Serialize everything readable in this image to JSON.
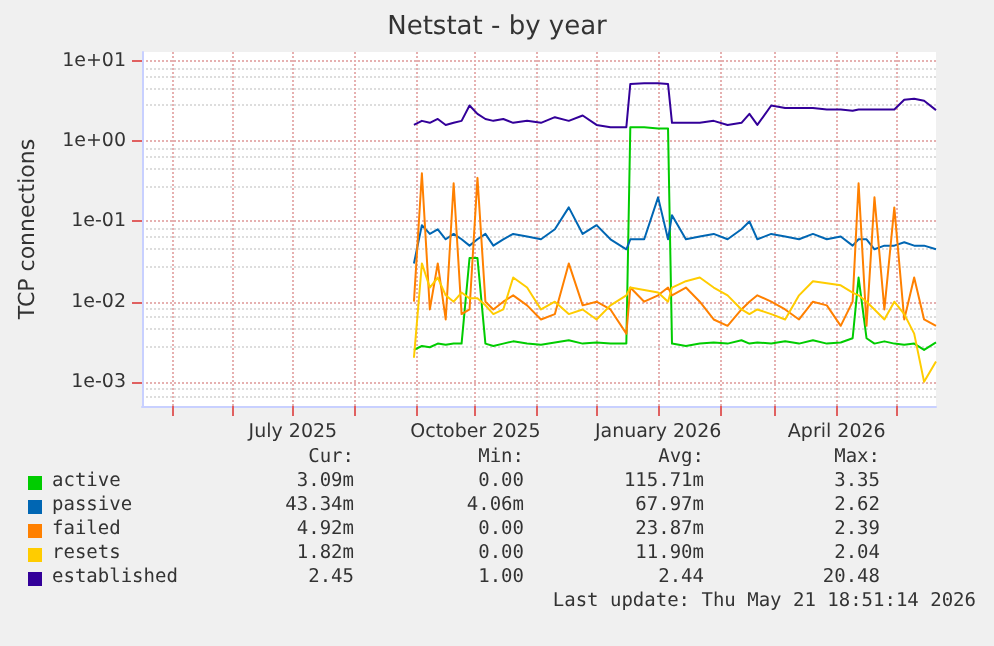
{
  "chart_data": {
    "type": "line",
    "title": "Netstat - by year",
    "ylabel": "TCP connections",
    "log": true,
    "grid": true,
    "legend": "bottom",
    "marker": "none",
    "line_style": "solid",
    "xlim": [
      "2025-04-16",
      "2026-05-21"
    ],
    "xticks": [
      {
        "value": "2025-05-01",
        "label": null
      },
      {
        "value": "2025-06-01",
        "label": null
      },
      {
        "value": "2025-07-01",
        "label": "July 2025"
      },
      {
        "value": "2025-08-01",
        "label": null
      },
      {
        "value": "2025-09-01",
        "label": null
      },
      {
        "value": "2025-10-01",
        "label": "October 2025"
      },
      {
        "value": "2025-11-01",
        "label": null
      },
      {
        "value": "2025-12-01",
        "label": null
      },
      {
        "value": "2026-01-01",
        "label": "January 2026"
      },
      {
        "value": "2026-02-01",
        "label": null
      },
      {
        "value": "2026-03-01",
        "label": null
      },
      {
        "value": "2026-04-01",
        "label": "April 2026"
      },
      {
        "value": "2026-05-01",
        "label": null
      }
    ],
    "ylim": [
      0.0005,
      13
    ],
    "yticks": [
      {
        "value": 0.001,
        "label": "1e-03"
      },
      {
        "value": 0.01,
        "label": "1e-02"
      },
      {
        "value": 0.1,
        "label": "1e-01"
      },
      {
        "value": 1,
        "label": "1e+00"
      },
      {
        "value": 10,
        "label": "1e+01"
      }
    ],
    "x": [
      "2025-08-31",
      "2025-09-04",
      "2025-09-08",
      "2025-09-12",
      "2025-09-16",
      "2025-09-20",
      "2025-09-24",
      "2025-09-28",
      "2025-10-02",
      "2025-10-06",
      "2025-10-10",
      "2025-10-15",
      "2025-10-20",
      "2025-10-27",
      "2025-11-03",
      "2025-11-10",
      "2025-11-17",
      "2025-11-24",
      "2025-12-01",
      "2025-12-08",
      "2025-12-16",
      "2025-12-18",
      "2025-12-25",
      "2026-01-01",
      "2026-01-06",
      "2026-01-08",
      "2026-01-15",
      "2026-01-22",
      "2026-01-29",
      "2026-02-05",
      "2026-02-12",
      "2026-02-16",
      "2026-02-20",
      "2026-02-27",
      "2026-03-06",
      "2026-03-13",
      "2026-03-20",
      "2026-03-27",
      "2026-04-03",
      "2026-04-09",
      "2026-04-12",
      "2026-04-16",
      "2026-04-20",
      "2026-04-25",
      "2026-04-30",
      "2026-05-05",
      "2026-05-10",
      "2026-05-15",
      "2026-05-21"
    ],
    "series": [
      {
        "name": "active",
        "color": "#00cc00",
        "values": [
          0.0025,
          0.0028,
          0.0027,
          0.003,
          0.0029,
          0.003,
          0.003,
          0.035,
          0.035,
          0.003,
          0.0028,
          0.003,
          0.0032,
          0.003,
          0.0029,
          0.0031,
          0.0033,
          0.003,
          0.0031,
          0.003,
          0.003,
          1.5,
          1.5,
          1.45,
          1.45,
          0.003,
          0.0028,
          0.003,
          0.0031,
          0.003,
          0.0033,
          0.003,
          0.0031,
          0.003,
          0.0032,
          0.003,
          0.0033,
          0.003,
          0.0031,
          0.0035,
          0.02,
          0.0035,
          0.003,
          0.0032,
          0.003,
          0.0029,
          0.003,
          0.0025,
          0.0031
        ]
      },
      {
        "name": "passive",
        "color": "#0066b3",
        "values": [
          0.03,
          0.09,
          0.07,
          0.08,
          0.06,
          0.07,
          0.06,
          0.05,
          0.06,
          0.07,
          0.05,
          0.06,
          0.07,
          0.065,
          0.06,
          0.08,
          0.15,
          0.07,
          0.09,
          0.06,
          0.045,
          0.06,
          0.06,
          0.2,
          0.06,
          0.12,
          0.06,
          0.065,
          0.07,
          0.06,
          0.08,
          0.1,
          0.06,
          0.07,
          0.065,
          0.06,
          0.07,
          0.06,
          0.065,
          0.05,
          0.06,
          0.06,
          0.045,
          0.05,
          0.05,
          0.055,
          0.05,
          0.05,
          0.045
        ]
      },
      {
        "name": "failed",
        "color": "#ff8000",
        "values": [
          0.01,
          0.4,
          0.008,
          0.03,
          0.006,
          0.3,
          0.007,
          0.008,
          0.35,
          0.01,
          0.008,
          0.01,
          0.012,
          0.009,
          0.006,
          0.007,
          0.03,
          0.009,
          0.01,
          0.008,
          0.004,
          0.015,
          0.01,
          0.012,
          0.015,
          0.012,
          0.015,
          0.01,
          0.006,
          0.005,
          0.008,
          0.01,
          0.012,
          0.01,
          0.008,
          0.006,
          0.01,
          0.009,
          0.005,
          0.01,
          0.3,
          0.005,
          0.2,
          0.008,
          0.15,
          0.006,
          0.02,
          0.006,
          0.005
        ]
      },
      {
        "name": "resets",
        "color": "#ffcc00",
        "values": [
          0.002,
          0.03,
          0.015,
          0.02,
          0.012,
          0.01,
          0.013,
          0.011,
          0.011,
          0.009,
          0.007,
          0.008,
          0.02,
          0.015,
          0.008,
          0.01,
          0.007,
          0.008,
          0.006,
          0.009,
          0.012,
          0.015,
          0.014,
          0.013,
          0.01,
          0.015,
          0.018,
          0.02,
          0.015,
          0.012,
          0.008,
          0.007,
          0.008,
          0.007,
          0.006,
          0.012,
          0.018,
          0.017,
          0.016,
          0.013,
          0.012,
          0.01,
          0.008,
          0.006,
          0.01,
          0.007,
          0.004,
          0.001,
          0.0018
        ]
      },
      {
        "name": "established",
        "color": "#330099",
        "values": [
          1.6,
          1.8,
          1.7,
          1.9,
          1.6,
          1.7,
          1.8,
          2.8,
          2.2,
          1.9,
          1.8,
          1.9,
          1.7,
          1.8,
          1.7,
          2.0,
          1.8,
          2.1,
          1.6,
          1.5,
          1.5,
          5.2,
          5.3,
          5.3,
          5.2,
          1.7,
          1.7,
          1.7,
          1.8,
          1.6,
          1.7,
          2.2,
          1.6,
          2.8,
          2.6,
          2.6,
          2.6,
          2.5,
          2.5,
          2.4,
          2.5,
          2.5,
          2.5,
          2.5,
          2.5,
          3.3,
          3.4,
          3.2,
          2.45
        ]
      }
    ],
    "annotations": [
      "Cur:",
      "Min:",
      "Avg:",
      "Max:",
      "3.09m",
      "0.00",
      "115.71m",
      "3.35",
      "43.34m",
      "4.06m",
      "67.97m",
      "2.62",
      "4.92m",
      "0.00",
      "23.87m",
      "2.39",
      "1.82m",
      "0.00",
      "11.90m",
      "2.04",
      "2.45",
      "1.00",
      "2.44",
      "20.48",
      "Last update: Thu May 21 18:51:14 2026"
    ]
  }
}
